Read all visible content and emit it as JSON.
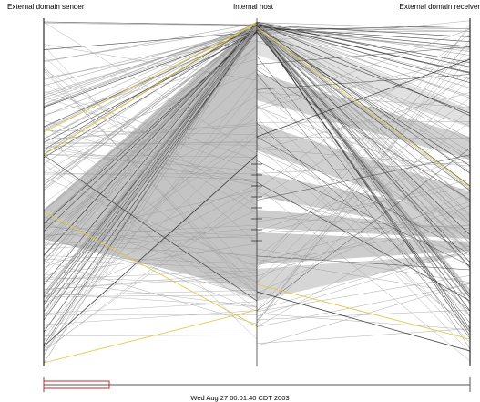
{
  "axes": {
    "left": "External domain sender",
    "center": "Internal host",
    "right": "External domain receiver"
  },
  "timeline": {
    "timestamp": "Wed Aug 27 00:01:40 CDT 2003"
  },
  "colors": {
    "background": "#ffffff",
    "line_gray": "#9a9a9a",
    "line_dark": "#2b2b2b",
    "fill_gray": "#c4c4c4",
    "highlight_yellow": "#e3c84a",
    "slider_red": "#c8282d"
  }
}
